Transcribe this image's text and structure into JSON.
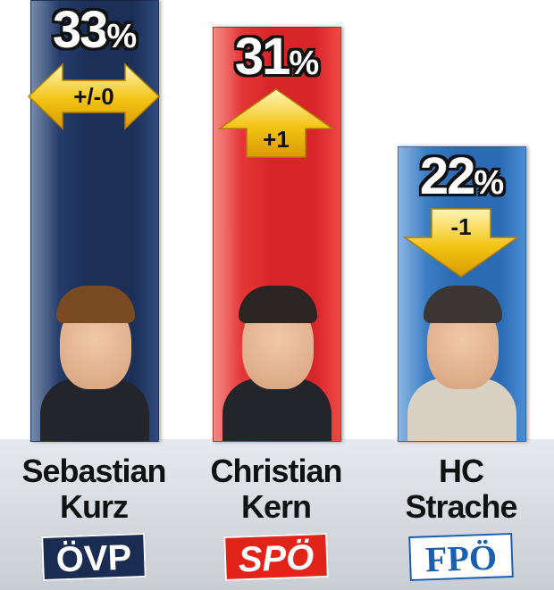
{
  "chart_data": {
    "type": "bar",
    "title": "",
    "xlabel": "",
    "ylabel": "",
    "ylim": [
      0,
      33
    ],
    "categories": [
      "Sebastian Kurz",
      "Christian Kern",
      "HC Strache"
    ],
    "values": [
      33,
      31,
      22
    ],
    "bars": [
      {
        "key": "kurz",
        "name_line1": "Sebastian",
        "name_line2": "Kurz",
        "value": 33,
        "percent_label": "33",
        "change": "+/-0",
        "direction": "same",
        "party": "ÖVP",
        "bar_color": "#1b2f57",
        "bar_color_light": "#2f4a7c",
        "logo_bg": "#1a2c52",
        "logo_text": "#ffffff"
      },
      {
        "key": "kern",
        "name_line1": "Christian",
        "name_line2": "Kern",
        "value": 31,
        "percent_label": "31",
        "change": "+1",
        "direction": "up",
        "party": "SPÖ",
        "bar_color": "#d8252a",
        "bar_color_light": "#ef4a45",
        "logo_bg": "#e2231a",
        "logo_text": "#ffffff"
      },
      {
        "key": "strache",
        "name_line1": "HC",
        "name_line2": "Strache",
        "value": 22,
        "percent_label": "22",
        "change": "-1",
        "direction": "down",
        "party": "FPÖ",
        "bar_color": "#2a6bb3",
        "bar_color_light": "#4b8ed3",
        "logo_bg": "#ffffff",
        "logo_text": "#1a5fb0"
      }
    ],
    "percent_sign": "%",
    "arrow_color": "#f3c415",
    "grid": false
  }
}
